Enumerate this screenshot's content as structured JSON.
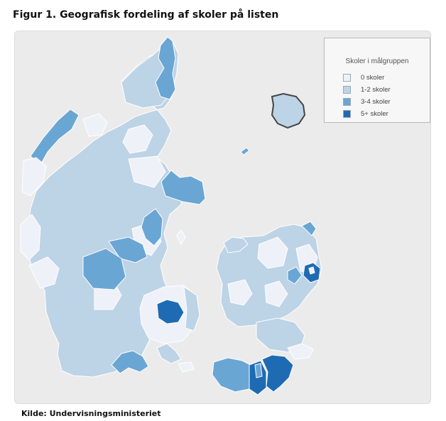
{
  "title": "Figur 1. Geografisk fordeling af skoler på listen",
  "source": "Kilde: Undervisningsministeriet",
  "legend": {
    "title": "Skoler  i målgruppen",
    "items": [
      {
        "label": "0 skoler",
        "color": "#eef1f8"
      },
      {
        "label": "1-2 skoler",
        "color": "#bdd3e6"
      },
      {
        "label": "3-4 skoler",
        "color": "#6aa6d4"
      },
      {
        "label": "5+ skoler",
        "color": "#1e6bb4"
      }
    ]
  },
  "colors": {
    "background": "#ebebeb",
    "border": "#ffffff",
    "outline": "#444444"
  }
}
